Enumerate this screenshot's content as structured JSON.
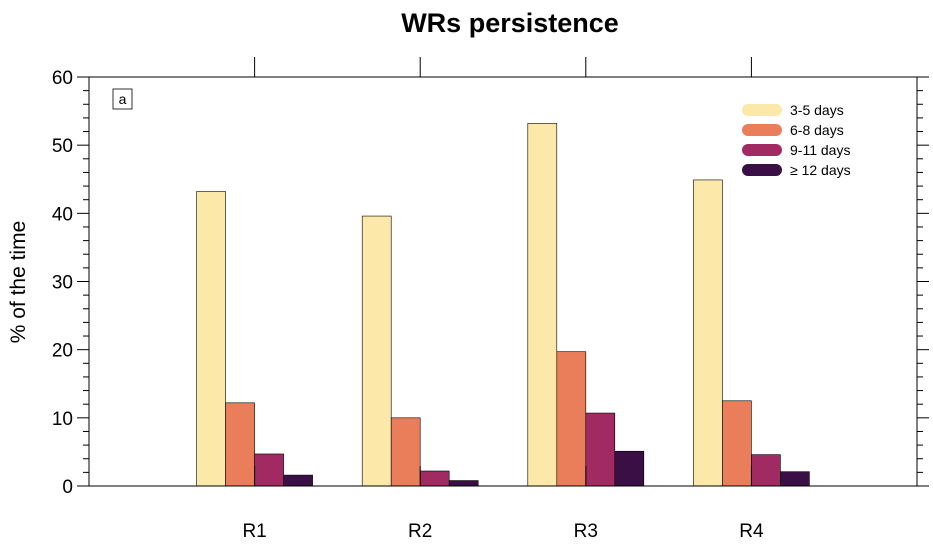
{
  "chart_data": {
    "type": "bar",
    "title": "WRs persistence",
    "panel_label": "a",
    "xlabel": "",
    "ylabel": "% of the time",
    "categories": [
      "R1",
      "R2",
      "R3",
      "R4"
    ],
    "ylim": [
      0,
      60
    ],
    "yticks": [
      0,
      10,
      20,
      30,
      40,
      50,
      60
    ],
    "xlim": [
      0,
      5
    ],
    "category_positions": [
      1,
      2,
      3,
      4
    ],
    "grid": false,
    "legend_position": "top-right",
    "series": [
      {
        "name": "3-5 days",
        "color": "#FCE8A9",
        "values": [
          43.2,
          39.6,
          53.2,
          44.9
        ]
      },
      {
        "name": "6-8 days",
        "color": "#EB7E5A",
        "values": [
          12.2,
          10.0,
          19.7,
          12.5
        ]
      },
      {
        "name": "9-11 days",
        "color": "#A12A62",
        "values": [
          4.7,
          2.2,
          10.7,
          4.6
        ]
      },
      {
        "name": "≥ 12 days",
        "color": "#3A0F45",
        "values": [
          1.6,
          0.8,
          5.1,
          2.1
        ]
      }
    ]
  }
}
